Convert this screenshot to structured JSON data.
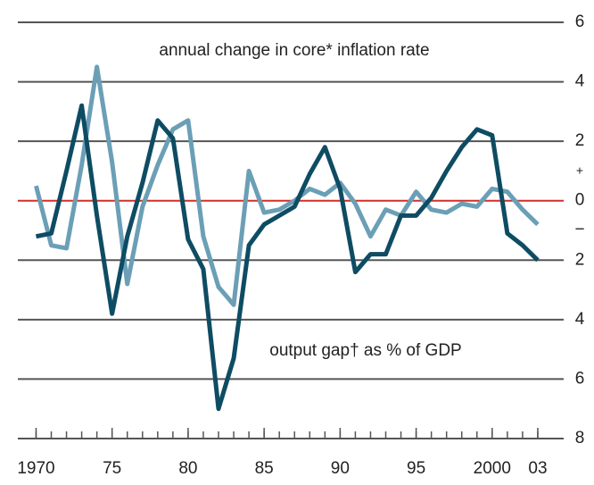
{
  "chart_data": {
    "type": "line",
    "annotations": [
      "annual change in core* inflation rate",
      "output gap† as % of GDP"
    ],
    "zero_signs": [
      "+",
      "−"
    ],
    "x": [
      1970,
      1971,
      1972,
      1973,
      1974,
      1975,
      1976,
      1977,
      1978,
      1979,
      1980,
      1981,
      1982,
      1983,
      1984,
      1985,
      1986,
      1987,
      1988,
      1989,
      1990,
      1991,
      1992,
      1993,
      1994,
      1995,
      1996,
      1997,
      1998,
      1999,
      2000,
      2001,
      2002,
      2003
    ],
    "series": [
      {
        "name": "annual change in core* inflation rate",
        "color": "#6b9fb6",
        "values": [
          0.5,
          -1.5,
          -1.6,
          1.2,
          4.5,
          1.3,
          -2.8,
          -0.2,
          1.2,
          2.4,
          2.7,
          -1.2,
          -2.9,
          -3.5,
          1.0,
          -0.4,
          -0.3,
          0,
          0.4,
          0.2,
          0.6,
          -0.1,
          -1.2,
          -0.3,
          -0.5,
          0.3,
          -0.3,
          -0.4,
          -0.1,
          -0.2,
          0.4,
          0.3,
          -0.3,
          -0.8
        ]
      },
      {
        "name": "output gap† as % of GDP",
        "color": "#0e4c63",
        "values": [
          -1.2,
          -1.1,
          1.0,
          3.2,
          -0.5,
          -3.8,
          -1.2,
          0.6,
          2.7,
          2.1,
          -1.3,
          -2.3,
          -7.0,
          -5.3,
          -1.5,
          -0.8,
          -0.5,
          -0.2,
          0.9,
          1.8,
          0.4,
          -2.4,
          -1.8,
          -1.8,
          -0.5,
          -0.5,
          0.1,
          1.0,
          1.8,
          2.4,
          2.2,
          -1.1,
          -1.5,
          -2.0
        ]
      }
    ],
    "xlim": [
      1968.8,
      2004
    ],
    "xticks": [
      1970,
      {
        "value": 1975,
        "label": "75"
      },
      {
        "value": 1980,
        "label": "80"
      },
      {
        "value": 1985,
        "label": "85"
      },
      {
        "value": 1990,
        "label": "90"
      },
      {
        "value": 1995,
        "label": "95"
      },
      2000,
      {
        "value": 2003,
        "label": "03"
      }
    ],
    "ylim": [
      -8,
      6
    ],
    "yticks": [
      {
        "value": -8,
        "label": "8"
      },
      {
        "value": -6,
        "label": "6"
      },
      {
        "value": -4,
        "label": "4"
      },
      {
        "value": -2,
        "label": "2"
      },
      0,
      2,
      4,
      6
    ],
    "grid": true,
    "zero_line_color": "#d22f2a",
    "grid_color": "#555555"
  }
}
